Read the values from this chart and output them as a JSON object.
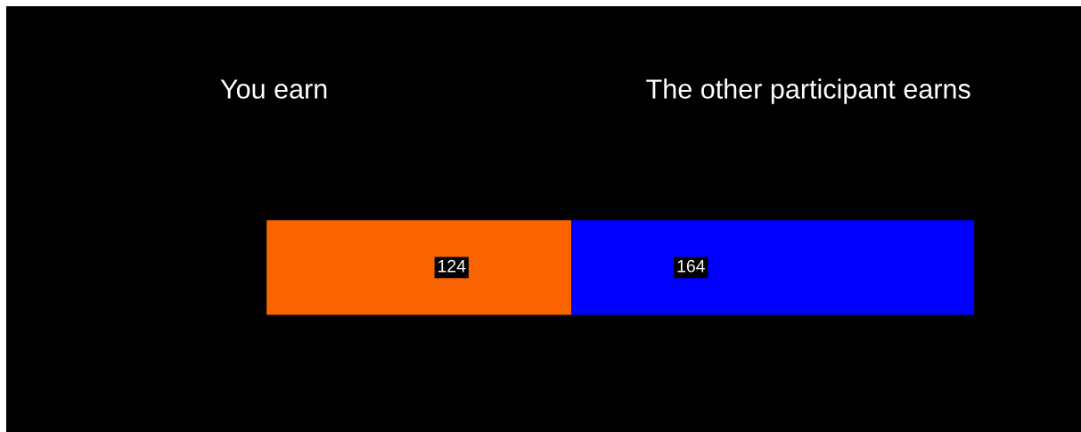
{
  "chart_data": {
    "type": "bar",
    "orientation": "horizontal",
    "stacked": true,
    "categories": [
      null
    ],
    "data_labels": true,
    "annotations": [
      "You earn",
      "The other participant earns"
    ],
    "series": [
      {
        "color": "#f96400",
        "values": [
          124
        ]
      },
      {
        "color": "#0000ff",
        "values": [
          164
        ]
      }
    ]
  }
}
